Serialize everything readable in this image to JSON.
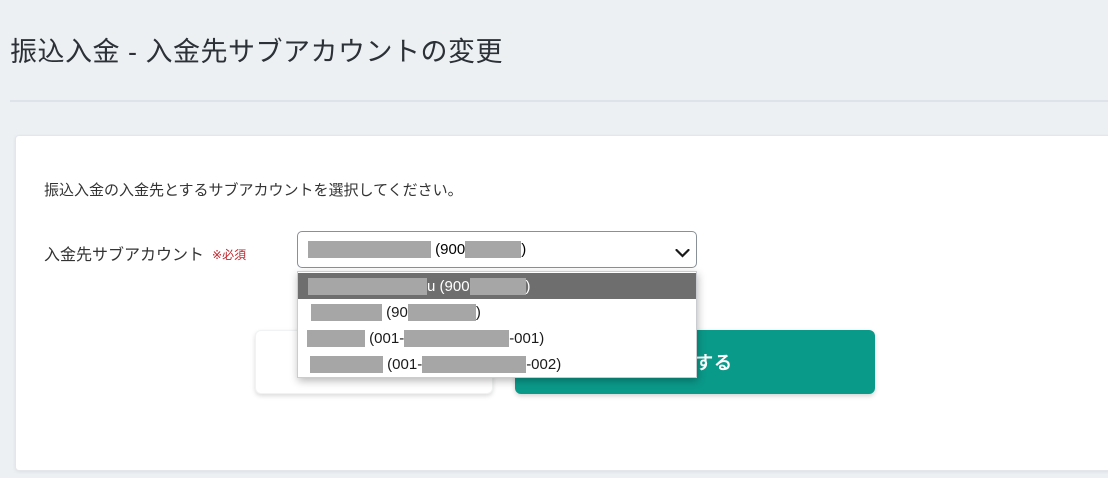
{
  "page": {
    "title": "振込入金 - 入金先サブアカウントの変更"
  },
  "card": {
    "instruction": "振込入金の入金先とするサブアカウントを選択してください。"
  },
  "form": {
    "label": "入金先サブアカウント",
    "required_badge": "※必須",
    "select": {
      "indent": 10,
      "segments": [
        {
          "r": 123
        },
        {
          "t": " (900"
        },
        {
          "r": 56
        },
        {
          "t": ")"
        }
      ]
    }
  },
  "dropdown": {
    "options": [
      {
        "indent": 10,
        "highlighted": true,
        "segments": [
          {
            "r": 119
          },
          {
            "t": "u (900"
          },
          {
            "r": 56
          },
          {
            "t": ")"
          }
        ]
      },
      {
        "indent": 13,
        "highlighted": false,
        "segments": [
          {
            "r": 71
          },
          {
            "t": " (90"
          },
          {
            "r": 68
          },
          {
            "t": ")"
          }
        ]
      },
      {
        "indent": 9,
        "highlighted": false,
        "segments": [
          {
            "r": 58
          },
          {
            "t": " (001-"
          },
          {
            "r": 105
          },
          {
            "t": "-001)"
          }
        ]
      },
      {
        "indent": 12,
        "highlighted": false,
        "segments": [
          {
            "r": 73
          },
          {
            "t": " (001-"
          },
          {
            "r": 104
          },
          {
            "t": "-002)"
          }
        ]
      }
    ]
  },
  "buttons": {
    "secondary_label": "",
    "primary_label": "変更する"
  },
  "colors": {
    "accent": "#0a9a8a",
    "required": "#c0262e",
    "redaction": "#a6a6a6",
    "highlighted_row": "#6e6e6e",
    "page_bg": "#edf0f3"
  }
}
